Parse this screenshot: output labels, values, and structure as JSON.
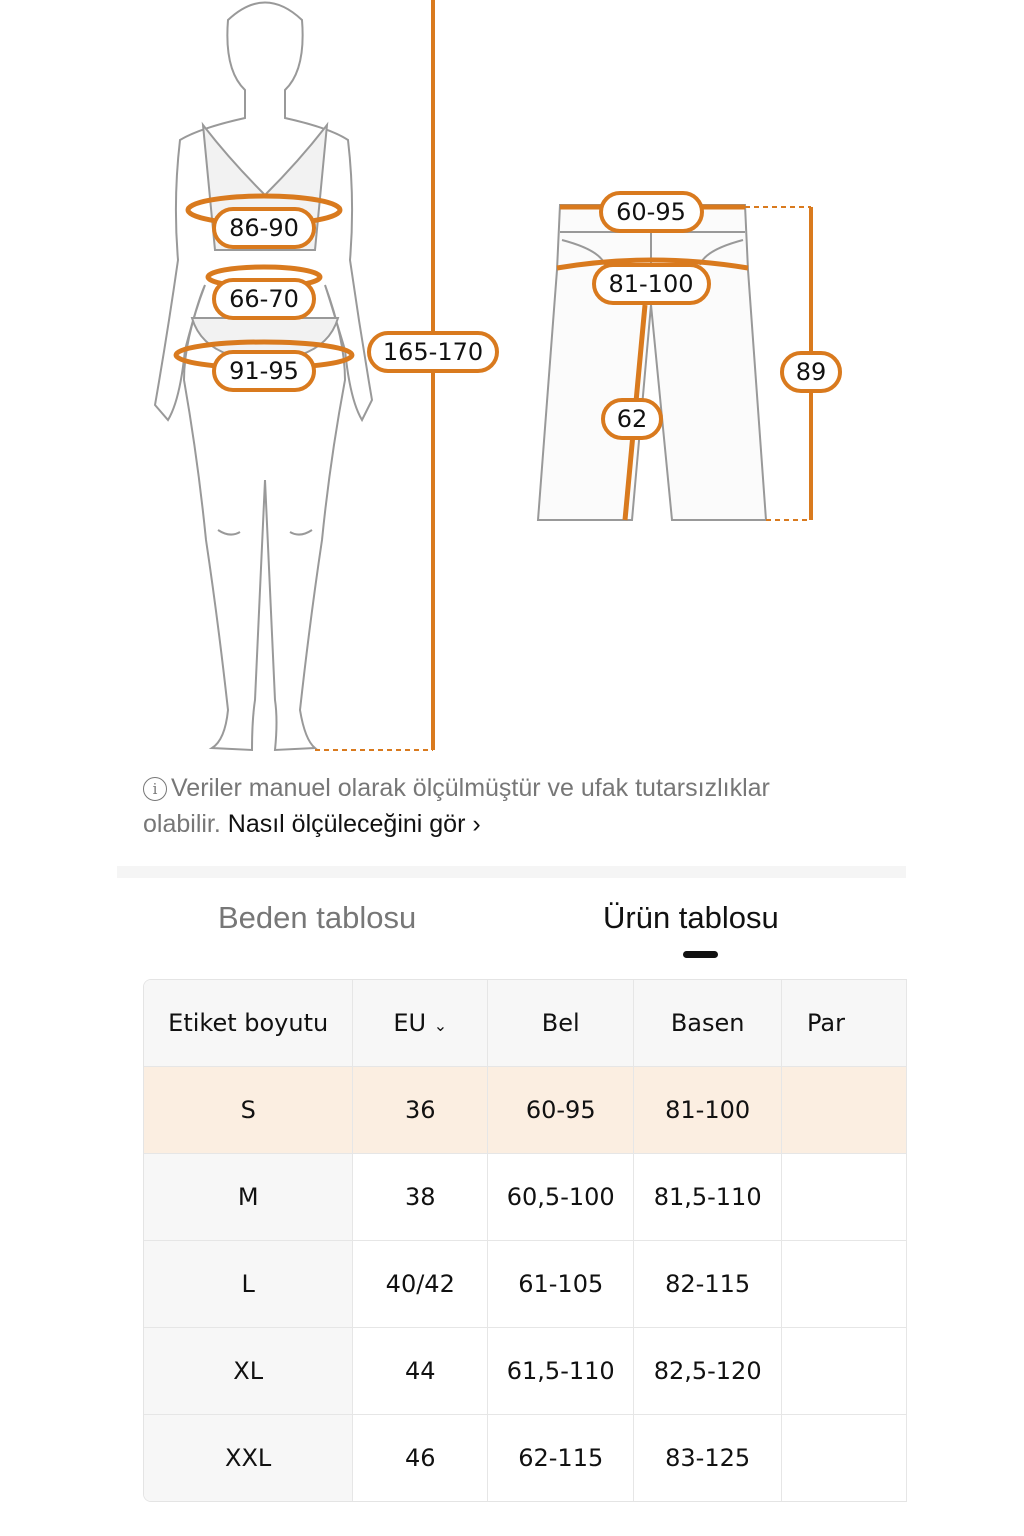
{
  "colors": {
    "accent": "#d97a1e",
    "selected_row": "#fbeee1"
  },
  "figure": {
    "bust": "86-90",
    "waist": "66-70",
    "hips": "91-95",
    "height": "165-170"
  },
  "pants": {
    "waist": "60-95",
    "hip": "81-100",
    "inseam": "62",
    "length": "89"
  },
  "note": {
    "icon": "info-icon",
    "text": "Veriler manuel olarak ölçülmüştür ve ufak tutarsızlıklar olabilir.",
    "link": "Nasıl ölçüleceğini gör",
    "link_icon": "chevron-right-icon"
  },
  "tabs": [
    {
      "label": "Beden tablosu",
      "active": false
    },
    {
      "label": "Ürün tablosu",
      "active": true
    }
  ],
  "table": {
    "headers": [
      "Etiket boyutu",
      "EU",
      "Bel",
      "Basen",
      "Par"
    ],
    "eu_icon": "chevron-down-icon",
    "rows": [
      [
        "S",
        "36",
        "60-95",
        "81-100",
        ""
      ],
      [
        "M",
        "38",
        "60,5-100",
        "81,5-110",
        ""
      ],
      [
        "L",
        "40/42",
        "61-105",
        "82-115",
        ""
      ],
      [
        "XL",
        "44",
        "61,5-110",
        "82,5-120",
        ""
      ],
      [
        "XXL",
        "46",
        "62-115",
        "83-125",
        ""
      ]
    ]
  }
}
